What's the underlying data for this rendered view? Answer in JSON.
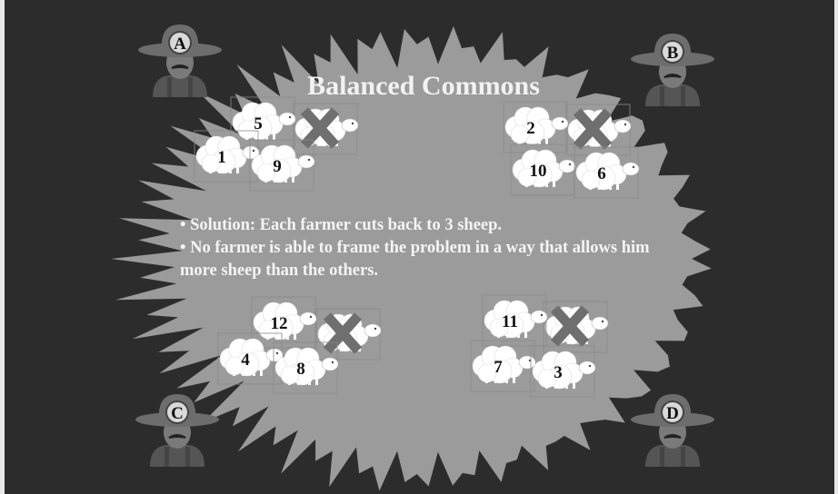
{
  "title": "Balanced Commons",
  "bullets": [
    "Solution: Each farmer cuts back to 3 sheep.",
    "No farmer is able to frame the problem in a way that allows him more sheep than the others."
  ],
  "farmers": [
    {
      "label": "A",
      "sheep": [
        "5",
        "1",
        "9"
      ]
    },
    {
      "label": "B",
      "sheep": [
        "2",
        "10",
        "6"
      ]
    },
    {
      "label": "C",
      "sheep": [
        "12",
        "4",
        "8"
      ]
    },
    {
      "label": "D",
      "sheep": [
        "11",
        "7",
        "3"
      ]
    }
  ]
}
